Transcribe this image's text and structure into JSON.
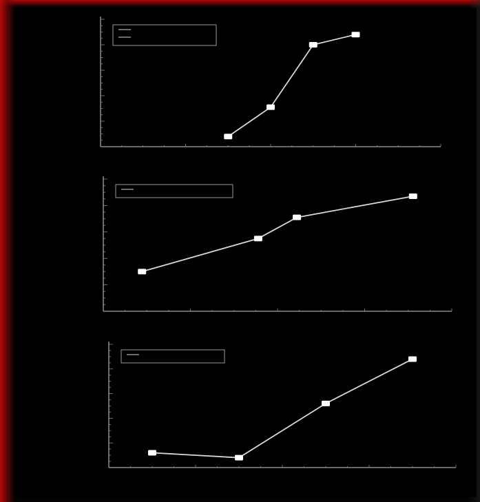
{
  "colors": {
    "background": "#000000",
    "frame_accent": "#c01010",
    "line": "#d8d8d8",
    "marker": "#ffffff",
    "axis": "#8a8a8a",
    "legend_border": "#9a9a9a"
  },
  "ylabel": "",
  "xlabel": "",
  "chart_data": [
    {
      "type": "line",
      "title": "",
      "legend": {
        "position": "top-left",
        "entries": [
          "",
          ""
        ]
      },
      "x": [
        3,
        4,
        5,
        6
      ],
      "series": [
        {
          "values": [
            8,
            31,
            80,
            88
          ]
        }
      ],
      "xlim": [
        0,
        8
      ],
      "ylim": [
        0,
        100
      ],
      "grid": false
    },
    {
      "type": "line",
      "title": "",
      "legend": {
        "position": "top-left",
        "entries": [
          ""
        ]
      },
      "x": [
        1,
        4,
        5,
        8
      ],
      "series": [
        {
          "values": [
            30,
            55,
            71,
            87
          ]
        }
      ],
      "xlim": [
        0,
        9
      ],
      "ylim": [
        0,
        100
      ],
      "grid": false
    },
    {
      "type": "line",
      "title": "",
      "legend": {
        "position": "top-left",
        "entries": [
          ""
        ]
      },
      "x": [
        1,
        3,
        5,
        7
      ],
      "series": [
        {
          "values": [
            12,
            8,
            52,
            88
          ]
        }
      ],
      "xlim": [
        0,
        8
      ],
      "ylim": [
        0,
        100
      ],
      "grid": false
    }
  ]
}
